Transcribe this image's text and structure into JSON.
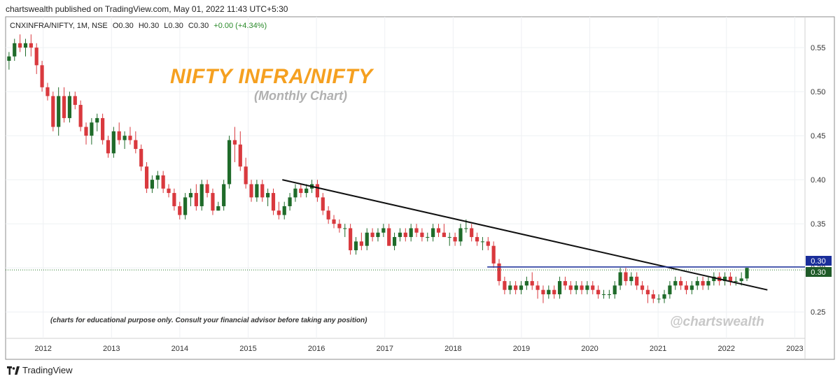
{
  "header": {
    "published": "chartswealth published on TradingView.com, May 01, 2022 11:43 UTC+5:30"
  },
  "symbol_bar": {
    "symbol": "CNXINFRA/NIFTY, 1M, NSE",
    "o": "O0.30",
    "h": "H0.30",
    "l": "L0.30",
    "c": "C0.30",
    "change": "+0.00 (+4.34%)"
  },
  "annotations": {
    "title": "NIFTY INFRA/NIFTY",
    "subtitle": "(Monthly Chart)",
    "disclaimer": "(charts for educational purpose only. Consult your financial advisor before taking any position)",
    "watermark": "@chartswealth"
  },
  "price_labels": {
    "resistance": "0.30",
    "last": "0.30"
  },
  "footer": {
    "brand": "TradingView",
    "logo_icon": "tradingview-logo-icon"
  },
  "colors": {
    "up": "#1f6b2a",
    "down": "#d9393e",
    "title": "#f5a020",
    "resistance_line": "#1a2e9a",
    "last_label": "#1f5a28"
  },
  "chart_data": {
    "type": "candlestick",
    "interval": "1M",
    "y_ticks": [
      0.25,
      0.3,
      0.35,
      0.4,
      0.45,
      0.5,
      0.55
    ],
    "x_ticks": [
      "2012",
      "2013",
      "2014",
      "2015",
      "2016",
      "2017",
      "2018",
      "2019",
      "2020",
      "2021",
      "2022",
      "2023"
    ],
    "ylim": [
      0.22,
      0.585
    ],
    "xlim": [
      2011.45,
      2023.15
    ],
    "grid": true,
    "legend": "none",
    "ohlc": [
      [
        0.535,
        0.545,
        0.525,
        0.54
      ],
      [
        0.54,
        0.56,
        0.535,
        0.555
      ],
      [
        0.555,
        0.565,
        0.545,
        0.55
      ],
      [
        0.55,
        0.56,
        0.54,
        0.555
      ],
      [
        0.555,
        0.565,
        0.54,
        0.55
      ],
      [
        0.55,
        0.555,
        0.52,
        0.53
      ],
      [
        0.53,
        0.535,
        0.5,
        0.505
      ],
      [
        0.505,
        0.51,
        0.49,
        0.495
      ],
      [
        0.495,
        0.5,
        0.455,
        0.46
      ],
      [
        0.46,
        0.505,
        0.45,
        0.495
      ],
      [
        0.495,
        0.505,
        0.465,
        0.47
      ],
      [
        0.47,
        0.5,
        0.465,
        0.495
      ],
      [
        0.495,
        0.5,
        0.48,
        0.485
      ],
      [
        0.485,
        0.49,
        0.455,
        0.46
      ],
      [
        0.46,
        0.465,
        0.44,
        0.45
      ],
      [
        0.45,
        0.47,
        0.44,
        0.465
      ],
      [
        0.465,
        0.475,
        0.455,
        0.47
      ],
      [
        0.47,
        0.475,
        0.44,
        0.445
      ],
      [
        0.445,
        0.45,
        0.425,
        0.43
      ],
      [
        0.43,
        0.46,
        0.425,
        0.455
      ],
      [
        0.455,
        0.465,
        0.44,
        0.445
      ],
      [
        0.445,
        0.455,
        0.435,
        0.45
      ],
      [
        0.45,
        0.46,
        0.44,
        0.445
      ],
      [
        0.445,
        0.455,
        0.43,
        0.435
      ],
      [
        0.435,
        0.44,
        0.41,
        0.415
      ],
      [
        0.415,
        0.42,
        0.385,
        0.39
      ],
      [
        0.39,
        0.405,
        0.385,
        0.4
      ],
      [
        0.4,
        0.41,
        0.39,
        0.405
      ],
      [
        0.405,
        0.41,
        0.385,
        0.39
      ],
      [
        0.39,
        0.395,
        0.38,
        0.385
      ],
      [
        0.385,
        0.39,
        0.365,
        0.37
      ],
      [
        0.37,
        0.375,
        0.355,
        0.36
      ],
      [
        0.36,
        0.385,
        0.355,
        0.38
      ],
      [
        0.38,
        0.39,
        0.37,
        0.385
      ],
      [
        0.385,
        0.395,
        0.365,
        0.37
      ],
      [
        0.37,
        0.4,
        0.365,
        0.395
      ],
      [
        0.395,
        0.4,
        0.38,
        0.385
      ],
      [
        0.385,
        0.39,
        0.36,
        0.365
      ],
      [
        0.365,
        0.375,
        0.365,
        0.37
      ],
      [
        0.37,
        0.4,
        0.365,
        0.395
      ],
      [
        0.395,
        0.45,
        0.39,
        0.445
      ],
      [
        0.445,
        0.46,
        0.42,
        0.44
      ],
      [
        0.44,
        0.455,
        0.41,
        0.415
      ],
      [
        0.415,
        0.425,
        0.39,
        0.395
      ],
      [
        0.395,
        0.4,
        0.375,
        0.38
      ],
      [
        0.38,
        0.4,
        0.375,
        0.395
      ],
      [
        0.395,
        0.4,
        0.375,
        0.38
      ],
      [
        0.38,
        0.39,
        0.37,
        0.385
      ],
      [
        0.385,
        0.39,
        0.36,
        0.365
      ],
      [
        0.365,
        0.375,
        0.355,
        0.36
      ],
      [
        0.36,
        0.375,
        0.355,
        0.37
      ],
      [
        0.37,
        0.385,
        0.365,
        0.38
      ],
      [
        0.38,
        0.395,
        0.375,
        0.39
      ],
      [
        0.39,
        0.395,
        0.38,
        0.385
      ],
      [
        0.385,
        0.395,
        0.38,
        0.39
      ],
      [
        0.39,
        0.4,
        0.385,
        0.395
      ],
      [
        0.395,
        0.4,
        0.375,
        0.38
      ],
      [
        0.38,
        0.385,
        0.36,
        0.365
      ],
      [
        0.365,
        0.37,
        0.35,
        0.355
      ],
      [
        0.355,
        0.36,
        0.345,
        0.35
      ],
      [
        0.35,
        0.355,
        0.34,
        0.345
      ],
      [
        0.345,
        0.35,
        0.335,
        0.345
      ],
      [
        0.345,
        0.35,
        0.315,
        0.32
      ],
      [
        0.32,
        0.335,
        0.315,
        0.33
      ],
      [
        0.33,
        0.34,
        0.32,
        0.325
      ],
      [
        0.325,
        0.345,
        0.32,
        0.34
      ],
      [
        0.34,
        0.345,
        0.33,
        0.335
      ],
      [
        0.335,
        0.345,
        0.33,
        0.34
      ],
      [
        0.34,
        0.35,
        0.335,
        0.345
      ],
      [
        0.345,
        0.35,
        0.325,
        0.325
      ],
      [
        0.325,
        0.34,
        0.32,
        0.335
      ],
      [
        0.335,
        0.345,
        0.33,
        0.34
      ],
      [
        0.34,
        0.345,
        0.33,
        0.335
      ],
      [
        0.335,
        0.35,
        0.33,
        0.345
      ],
      [
        0.345,
        0.35,
        0.335,
        0.34
      ],
      [
        0.34,
        0.345,
        0.33,
        0.335
      ],
      [
        0.335,
        0.34,
        0.33,
        0.335
      ],
      [
        0.335,
        0.35,
        0.33,
        0.345
      ],
      [
        0.345,
        0.35,
        0.335,
        0.34
      ],
      [
        0.34,
        0.35,
        0.335,
        0.335
      ],
      [
        0.335,
        0.34,
        0.325,
        0.335
      ],
      [
        0.335,
        0.34,
        0.325,
        0.33
      ],
      [
        0.33,
        0.35,
        0.325,
        0.345
      ],
      [
        0.345,
        0.355,
        0.34,
        0.345
      ],
      [
        0.345,
        0.35,
        0.33,
        0.335
      ],
      [
        0.335,
        0.34,
        0.325,
        0.33
      ],
      [
        0.33,
        0.335,
        0.32,
        0.33
      ],
      [
        0.33,
        0.335,
        0.32,
        0.325
      ],
      [
        0.325,
        0.33,
        0.3,
        0.305
      ],
      [
        0.305,
        0.31,
        0.28,
        0.285
      ],
      [
        0.285,
        0.29,
        0.27,
        0.275
      ],
      [
        0.275,
        0.285,
        0.27,
        0.28
      ],
      [
        0.28,
        0.285,
        0.27,
        0.275
      ],
      [
        0.275,
        0.285,
        0.27,
        0.28
      ],
      [
        0.28,
        0.29,
        0.275,
        0.285
      ],
      [
        0.285,
        0.295,
        0.275,
        0.28
      ],
      [
        0.28,
        0.285,
        0.265,
        0.275
      ],
      [
        0.275,
        0.28,
        0.26,
        0.27
      ],
      [
        0.27,
        0.28,
        0.265,
        0.275
      ],
      [
        0.275,
        0.28,
        0.265,
        0.27
      ],
      [
        0.27,
        0.29,
        0.265,
        0.285
      ],
      [
        0.285,
        0.29,
        0.275,
        0.28
      ],
      [
        0.28,
        0.285,
        0.27,
        0.275
      ],
      [
        0.275,
        0.285,
        0.27,
        0.28
      ],
      [
        0.28,
        0.285,
        0.27,
        0.275
      ],
      [
        0.275,
        0.285,
        0.27,
        0.28
      ],
      [
        0.28,
        0.285,
        0.27,
        0.275
      ],
      [
        0.275,
        0.28,
        0.265,
        0.27
      ],
      [
        0.27,
        0.275,
        0.265,
        0.27
      ],
      [
        0.27,
        0.275,
        0.265,
        0.27
      ],
      [
        0.27,
        0.285,
        0.265,
        0.28
      ],
      [
        0.28,
        0.3,
        0.275,
        0.295
      ],
      [
        0.295,
        0.3,
        0.28,
        0.285
      ],
      [
        0.285,
        0.295,
        0.28,
        0.29
      ],
      [
        0.29,
        0.295,
        0.275,
        0.28
      ],
      [
        0.28,
        0.285,
        0.27,
        0.275
      ],
      [
        0.275,
        0.28,
        0.26,
        0.27
      ],
      [
        0.27,
        0.275,
        0.26,
        0.265
      ],
      [
        0.265,
        0.27,
        0.26,
        0.265
      ],
      [
        0.265,
        0.275,
        0.26,
        0.27
      ],
      [
        0.27,
        0.285,
        0.265,
        0.28
      ],
      [
        0.28,
        0.29,
        0.275,
        0.285
      ],
      [
        0.285,
        0.29,
        0.275,
        0.28
      ],
      [
        0.28,
        0.285,
        0.27,
        0.275
      ],
      [
        0.275,
        0.285,
        0.27,
        0.28
      ],
      [
        0.28,
        0.29,
        0.275,
        0.285
      ],
      [
        0.285,
        0.29,
        0.275,
        0.28
      ],
      [
        0.28,
        0.29,
        0.275,
        0.285
      ],
      [
        0.285,
        0.295,
        0.28,
        0.29
      ],
      [
        0.29,
        0.295,
        0.28,
        0.285
      ],
      [
        0.285,
        0.295,
        0.28,
        0.29
      ],
      [
        0.29,
        0.295,
        0.28,
        0.285
      ],
      [
        0.285,
        0.29,
        0.28,
        0.285
      ],
      [
        0.285,
        0.295,
        0.28,
        0.288
      ],
      [
        0.288,
        0.3,
        0.285,
        0.3
      ]
    ],
    "trendline": {
      "from": [
        2015.5,
        0.4
      ],
      "to": [
        2022.6,
        0.275
      ]
    },
    "resistance_level": 0.301,
    "last_price": 0.3
  }
}
